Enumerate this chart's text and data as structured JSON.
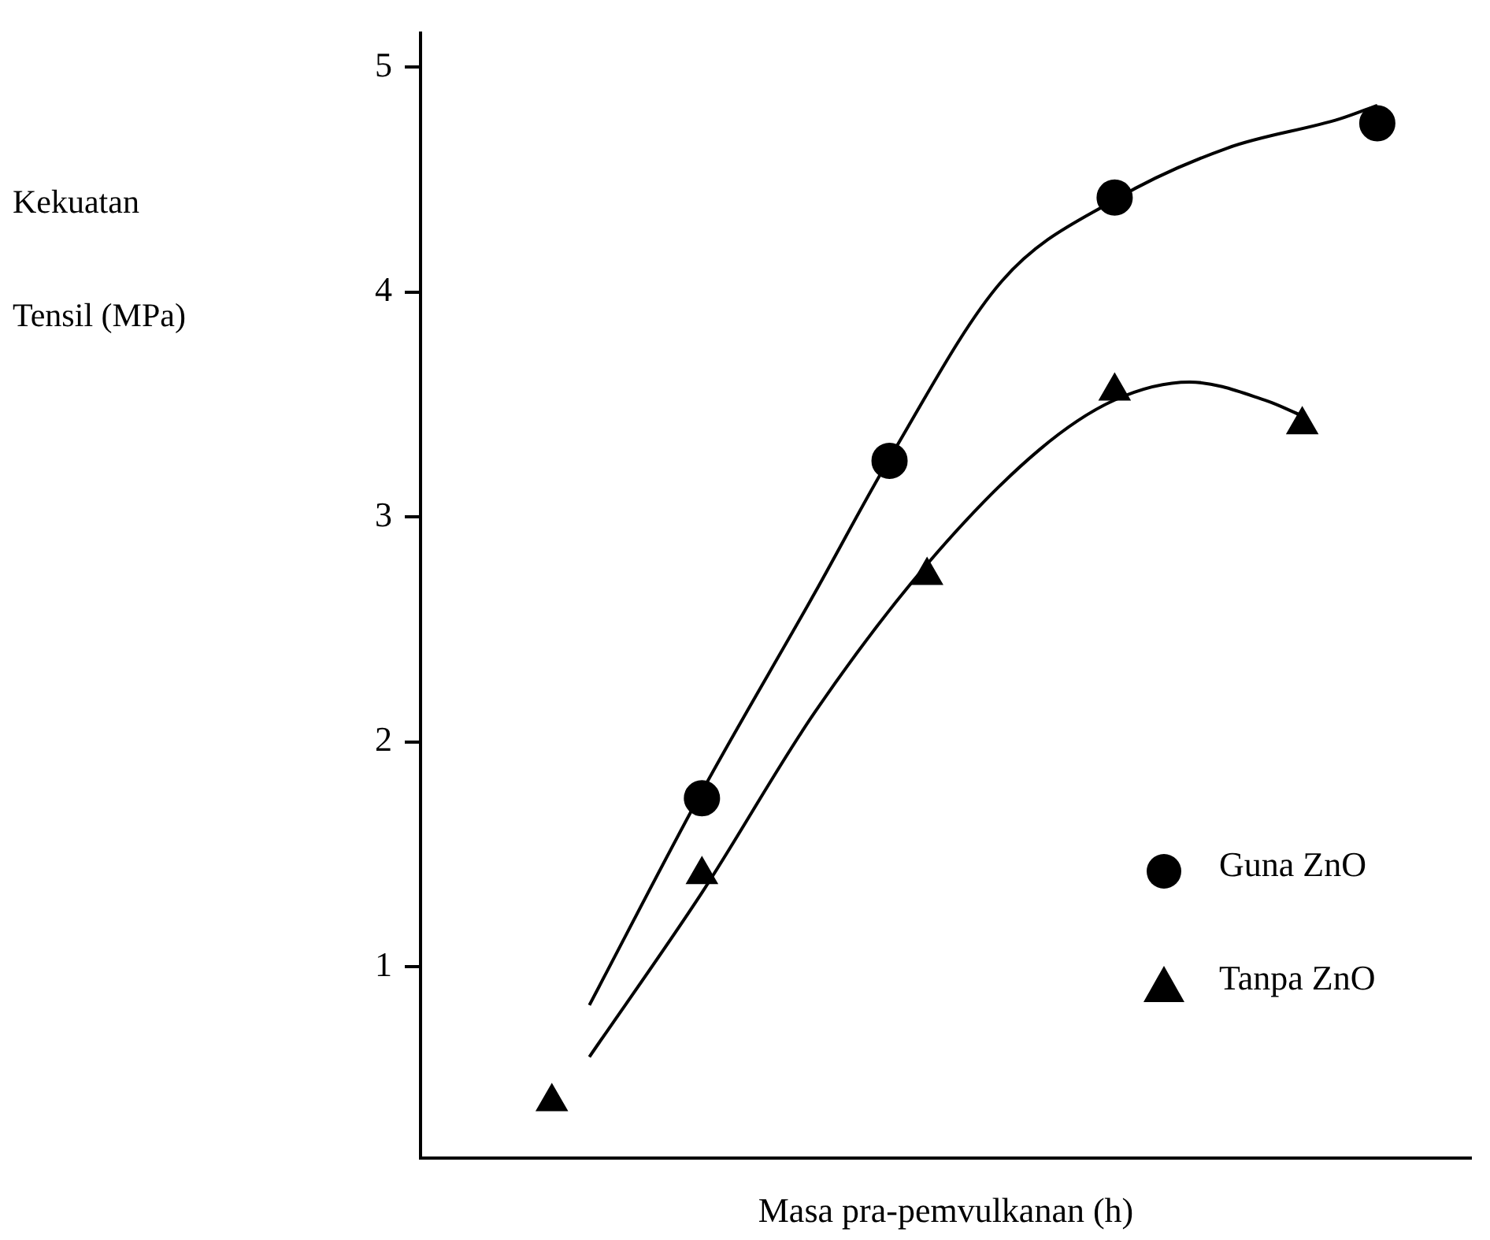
{
  "chart_data": {
    "type": "line",
    "xlabel": "Masa pra-pemvulkanan (h)",
    "ylabel": "Kekuatan Tensil (MPa)",
    "categories": [
      null,
      null,
      null,
      null,
      null,
      null,
      null,
      null,
      null,
      null,
      null,
      null,
      null,
      null,
      null,
      null,
      null,
      null,
      null,
      null,
      null,
      null,
      null,
      null,
      null,
      null,
      null,
      null
    ],
    "ylim": [
      0.15,
      5.15
    ],
    "yticks": [
      1,
      2,
      3,
      4,
      5
    ],
    "grid": false,
    "legend": "bottom right",
    "tick_labels": "y",
    "series": [
      {
        "name": "Guna ZnO",
        "type": "scatter",
        "marker": "circle",
        "color": "#000000",
        "values": [
          null,
          null,
          null,
          null,
          null,
          null,
          null,
          1.75,
          null,
          null,
          null,
          null,
          3.25,
          null,
          null,
          null,
          null,
          null,
          4.42,
          null,
          null,
          null,
          null,
          null,
          null,
          4.75,
          null,
          null
        ]
      },
      {
        "name": "Tanpa ZnO",
        "type": "scatter",
        "marker": "triangle",
        "color": "#000000",
        "values": [
          null,
          null,
          null,
          0.4,
          null,
          null,
          null,
          1.41,
          null,
          null,
          null,
          null,
          null,
          2.74,
          null,
          null,
          null,
          null,
          3.56,
          null,
          null,
          null,
          null,
          3.41,
          null,
          null,
          null,
          null
        ]
      },
      {
        "marker": "none",
        "line_style": "solid",
        "color": "#000000",
        "values": [
          null,
          null,
          null,
          null,
          0.83,
          null,
          null,
          1.78,
          null,
          null,
          2.66,
          null,
          3.26,
          null,
          null,
          4.05,
          null,
          null,
          4.41,
          null,
          null,
          4.64,
          null,
          null,
          4.77,
          4.83,
          null,
          null
        ]
      },
      {
        "marker": "none",
        "line_style": "solid",
        "color": "#000000",
        "values": [
          null,
          null,
          null,
          null,
          0.6,
          null,
          null,
          1.33,
          null,
          null,
          2.13,
          null,
          null,
          2.79,
          null,
          null,
          3.3,
          null,
          3.52,
          null,
          3.6,
          null,
          3.52,
          3.45,
          null,
          null,
          null,
          null
        ]
      }
    ]
  }
}
